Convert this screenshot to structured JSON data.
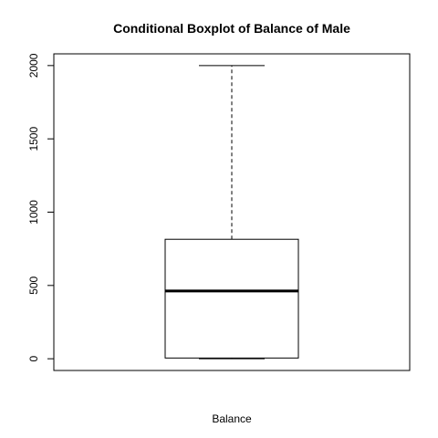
{
  "chart_data": {
    "type": "boxplot",
    "title": "Conditional Boxplot of Balance of Male",
    "xlabel": "Balance",
    "ylabel": "",
    "ylim": [
      -80,
      2080
    ],
    "yticks": [
      0,
      500,
      1000,
      1500,
      2000
    ],
    "ytick_labels": [
      "0",
      "500",
      "1000",
      "1500",
      "2000"
    ],
    "grid": false,
    "box": {
      "min": 0,
      "q1": 5,
      "median": 462,
      "q3": 815,
      "max": 2000
    },
    "colors": {
      "box_fill": "#ffffff",
      "stroke": "#000000"
    }
  }
}
